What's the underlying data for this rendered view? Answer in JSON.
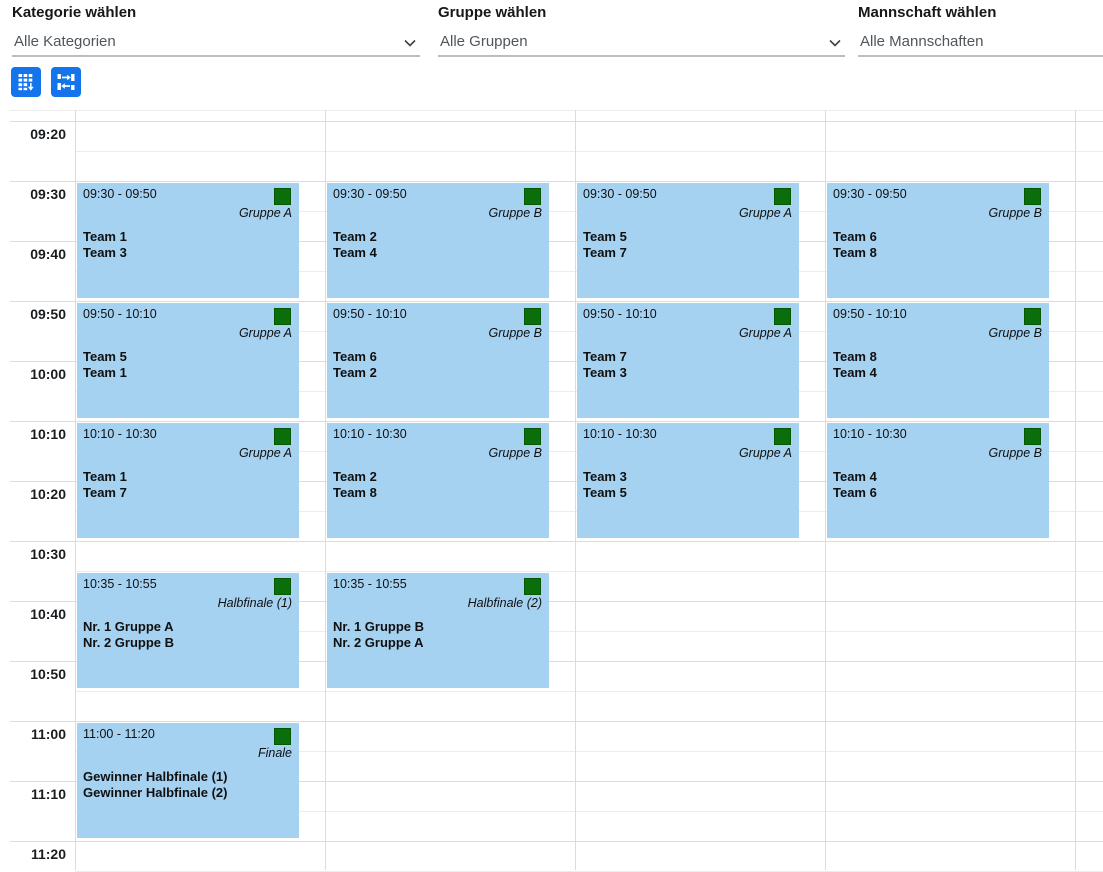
{
  "filters": [
    {
      "label": "Kategorie wählen",
      "value": "Alle Kategorien"
    },
    {
      "label": "Gruppe wählen",
      "value": "Alle Gruppen"
    },
    {
      "label": "Mannschaft wählen",
      "value": "Alle Mannschaften"
    }
  ],
  "toolbar": {
    "buttons": [
      {
        "icon": "calendar-grid-icon"
      },
      {
        "icon": "bracket-flow-icon"
      }
    ],
    "button_color": "#1474ec"
  },
  "calendar": {
    "time_labels": [
      "09:20",
      "09:30",
      "09:40",
      "09:50",
      "10:00",
      "10:10",
      "10:20",
      "10:30",
      "10:40",
      "10:50",
      "11:00",
      "11:10",
      "11:20"
    ],
    "columns": 4,
    "colors": {
      "event_bg": "#a6d2f2",
      "marker_green": "#0a6e0a",
      "grid_major": "#dcdcdc",
      "grid_minor": "#ececec"
    },
    "events": [
      {
        "column": 1,
        "time_text": "09:30 - 09:50",
        "start": "09:30",
        "end": "09:50",
        "group": "Gruppe A",
        "teams": [
          "Team 1",
          "Team 3"
        ]
      },
      {
        "column": 2,
        "time_text": "09:30 - 09:50",
        "start": "09:30",
        "end": "09:50",
        "group": "Gruppe B",
        "teams": [
          "Team 2",
          "Team 4"
        ]
      },
      {
        "column": 3,
        "time_text": "09:30 - 09:50",
        "start": "09:30",
        "end": "09:50",
        "group": "Gruppe A",
        "teams": [
          "Team 5",
          "Team 7"
        ]
      },
      {
        "column": 4,
        "time_text": "09:30 - 09:50",
        "start": "09:30",
        "end": "09:50",
        "group": "Gruppe B",
        "teams": [
          "Team 6",
          "Team 8"
        ]
      },
      {
        "column": 1,
        "time_text": "09:50 - 10:10",
        "start": "09:50",
        "end": "10:10",
        "group": "Gruppe A",
        "teams": [
          "Team 5",
          "Team 1"
        ]
      },
      {
        "column": 2,
        "time_text": "09:50 - 10:10",
        "start": "09:50",
        "end": "10:10",
        "group": "Gruppe B",
        "teams": [
          "Team 6",
          "Team 2"
        ]
      },
      {
        "column": 3,
        "time_text": "09:50 - 10:10",
        "start": "09:50",
        "end": "10:10",
        "group": "Gruppe A",
        "teams": [
          "Team 7",
          "Team 3"
        ]
      },
      {
        "column": 4,
        "time_text": "09:50 - 10:10",
        "start": "09:50",
        "end": "10:10",
        "group": "Gruppe B",
        "teams": [
          "Team 8",
          "Team 4"
        ]
      },
      {
        "column": 1,
        "time_text": "10:10 - 10:30",
        "start": "10:10",
        "end": "10:30",
        "group": "Gruppe A",
        "teams": [
          "Team 1",
          "Team 7"
        ]
      },
      {
        "column": 2,
        "time_text": "10:10 - 10:30",
        "start": "10:10",
        "end": "10:30",
        "group": "Gruppe B",
        "teams": [
          "Team 2",
          "Team 8"
        ]
      },
      {
        "column": 3,
        "time_text": "10:10 - 10:30",
        "start": "10:10",
        "end": "10:30",
        "group": "Gruppe A",
        "teams": [
          "Team 3",
          "Team 5"
        ]
      },
      {
        "column": 4,
        "time_text": "10:10 - 10:30",
        "start": "10:10",
        "end": "10:30",
        "group": "Gruppe B",
        "teams": [
          "Team 4",
          "Team 6"
        ]
      },
      {
        "column": 1,
        "time_text": "10:35 - 10:55",
        "start": "10:35",
        "end": "10:55",
        "group": "Halbfinale (1)",
        "teams": [
          "Nr. 1 Gruppe A",
          "Nr. 2 Gruppe B"
        ]
      },
      {
        "column": 2,
        "time_text": "10:35 - 10:55",
        "start": "10:35",
        "end": "10:55",
        "group": "Halbfinale (2)",
        "teams": [
          "Nr. 1 Gruppe B",
          "Nr. 2 Gruppe A"
        ]
      },
      {
        "column": 1,
        "time_text": "11:00 - 11:20",
        "start": "11:00",
        "end": "11:20",
        "group": "Finale",
        "teams": [
          "Gewinner Halbfinale (1)",
          "Gewinner Halbfinale (2)"
        ]
      }
    ]
  }
}
